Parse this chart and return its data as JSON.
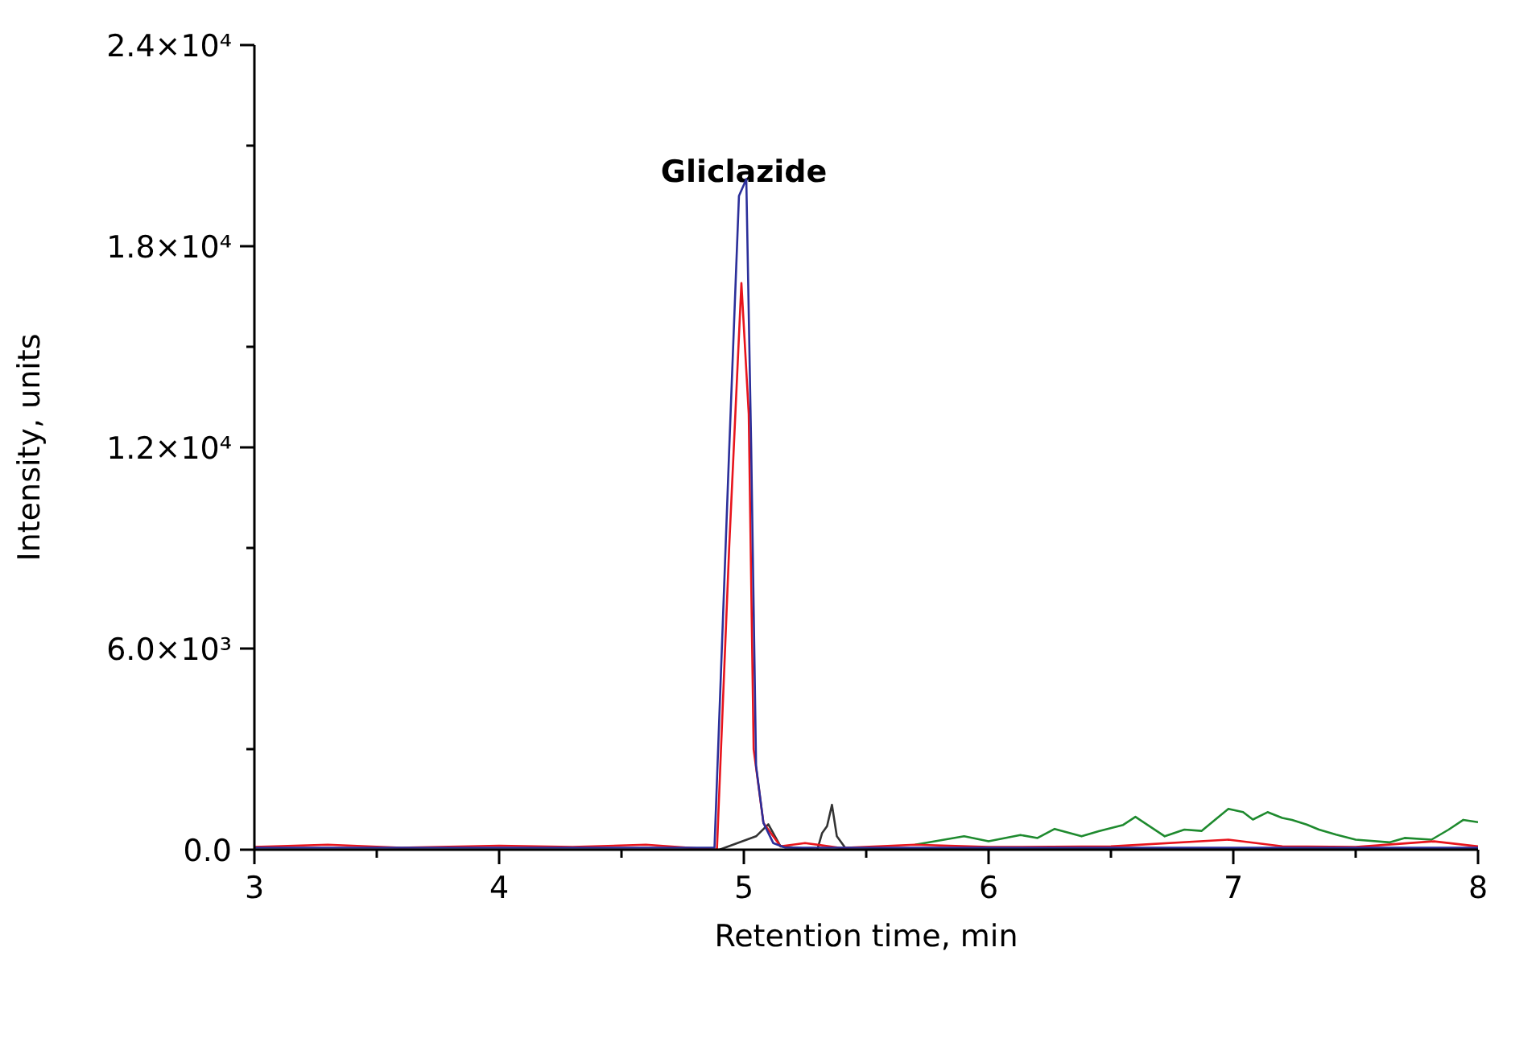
{
  "chart_data": {
    "type": "line",
    "xlabel": "Retention time, min",
    "ylabel": "Intensity, units",
    "xlim": [
      3,
      8
    ],
    "ylim": [
      0,
      24000
    ],
    "xticks": [
      3,
      {
        "value": 3.5,
        "label": null
      },
      4,
      {
        "value": 4.5,
        "label": null
      },
      5,
      {
        "value": 5.5,
        "label": null
      },
      6,
      {
        "value": 6.5,
        "label": null
      },
      7,
      {
        "value": 7.5,
        "label": null
      },
      8
    ],
    "yticks": [
      {
        "value": 0,
        "label": "0.0"
      },
      {
        "value": 3000,
        "label": null
      },
      {
        "value": 6000,
        "label": "6.0×10³"
      },
      {
        "value": 9000,
        "label": null
      },
      {
        "value": 12000,
        "label": "1.2×10⁴"
      },
      {
        "value": 15000,
        "label": null
      },
      {
        "value": 18000,
        "label": "1.8×10⁴"
      },
      {
        "value": 21000,
        "label": null
      },
      {
        "value": 24000,
        "label": "2.4×10⁴"
      }
    ],
    "grid": false,
    "marker": "none",
    "line_style": "solid",
    "annotations": [
      "Gliclazide"
    ],
    "series": [
      {
        "color": "#1e8a2e",
        "x": [
          5.7,
          5.9,
          6.0,
          6.13,
          6.2,
          6.27,
          6.38,
          6.45,
          6.55,
          6.6,
          6.72,
          6.8,
          6.87,
          6.98,
          7.04,
          7.08,
          7.14,
          7.2,
          7.24,
          7.3,
          7.35,
          7.42,
          7.5,
          7.64,
          7.7,
          7.81,
          7.88,
          7.94,
          8
        ],
        "values": [
          150,
          400,
          250,
          440,
          350,
          620,
          400,
          550,
          740,
          980,
          400,
          600,
          560,
          1220,
          1120,
          900,
          1120,
          950,
          890,
          750,
          600,
          450,
          300,
          220,
          350,
          300,
          600,
          890,
          820
        ]
      },
      {
        "color": "#333333",
        "x": [
          3,
          4,
          4.9,
          5.05,
          5.1,
          5.15,
          5.3,
          5.32,
          5.34,
          5.36,
          5.38,
          5.42,
          5.6,
          6,
          6.5,
          7,
          7.5,
          8
        ],
        "values": [
          0,
          0,
          0,
          400,
          760,
          100,
          0,
          500,
          700,
          1340,
          400,
          0,
          30,
          20,
          40,
          30,
          40,
          20
        ]
      },
      {
        "color": "#e8141c",
        "x": [
          3,
          3.3,
          3.6,
          4,
          4.3,
          4.6,
          4.89,
          4.94,
          4.99,
          5.02,
          5.04,
          5.08,
          5.15,
          5.25,
          5.4,
          5.7,
          6,
          6.5,
          6.98,
          7.2,
          7.5,
          7.82,
          8
        ],
        "values": [
          80,
          150,
          60,
          120,
          80,
          150,
          0,
          9000,
          16900,
          13000,
          3000,
          800,
          100,
          200,
          50,
          150,
          80,
          100,
          300,
          100,
          80,
          250,
          100
        ]
      },
      {
        "color": "#2b2f9a",
        "x": [
          3,
          4,
          4.88,
          4.94,
          4.98,
          5.01,
          5.03,
          5.05,
          5.08,
          5.12,
          5.17,
          6,
          7,
          8
        ],
        "values": [
          60,
          60,
          60,
          11900,
          19500,
          20000,
          12000,
          2500,
          800,
          200,
          60,
          60,
          60,
          60
        ]
      }
    ]
  }
}
